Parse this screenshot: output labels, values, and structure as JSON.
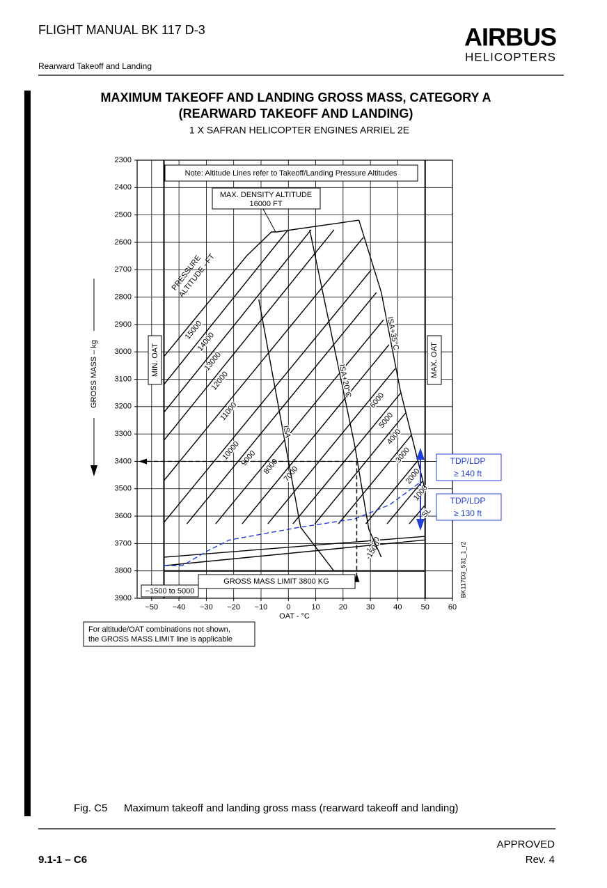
{
  "header": {
    "manual": "FLIGHT MANUAL  BK 117 D-3",
    "section": "Rearward Takeoff and Landing",
    "logo_top": "AIRBUS",
    "logo_bottom": "HELICOPTERS"
  },
  "chart_data": {
    "type": "line",
    "title": [
      "MAXIMUM TAKEOFF AND LANDING GROSS MASS, CATEGORY A",
      "(REARWARD TAKEOFF AND LANDING)"
    ],
    "subtitle": "1 X SAFRAN HELICOPTER ENGINES ARRIEL 2E",
    "x_label": "OAT - °C",
    "y_label": "GROSS MASS – kg",
    "xlim": [
      -55.3,
      60
    ],
    "xticks": [
      {
        "value": -50,
        "label": "−50"
      },
      {
        "value": -40,
        "label": "−40"
      },
      {
        "value": -30,
        "label": "−30"
      },
      {
        "value": -20,
        "label": "−20"
      },
      {
        "value": -10,
        "label": "−10"
      },
      0,
      10,
      20,
      30,
      40,
      50,
      60
    ],
    "ylim": [
      2300,
      3900
    ],
    "y_inverted": true,
    "yticks": [
      2300,
      2400,
      2500,
      2600,
      2700,
      2800,
      2900,
      3000,
      3100,
      3200,
      3300,
      3400,
      3500,
      3600,
      3700,
      3800,
      3900
    ],
    "grid": true,
    "color": "#000000",
    "series": [
      {
        "name": "15000",
        "x": [
          -45.5,
          -15.2
        ],
        "values": [
          3017,
          2649
        ]
      },
      {
        "name": "14000",
        "x": [
          -45.5,
          -0.1
        ],
        "values": [
          3119,
          2554
        ]
      },
      {
        "name": "13000",
        "x": [
          -45.5,
          8.3
        ],
        "values": [
          3221,
          2554
        ]
      },
      {
        "name": "12000",
        "x": [
          -45.5,
          16.7
        ],
        "values": [
          3323,
          2554
        ]
      },
      {
        "name": "11000",
        "x": [
          -45.5,
          27.4
        ],
        "values": [
          3470,
          2582
        ]
      },
      {
        "name": "10000",
        "x": [
          -45.5,
          30.2
        ],
        "values": [
          3623,
          2702
        ]
      },
      {
        "name": "9000",
        "x": [
          -37.1,
          32.2
        ],
        "values": [
          3628,
          2783
        ]
      },
      {
        "name": "8000",
        "x": [
          -26.6,
          34.8
        ],
        "values": [
          3628,
          2883
        ]
      },
      {
        "name": "7000",
        "x": [
          -16.9,
          36.8
        ],
        "values": [
          3628,
          2974
        ]
      },
      {
        "name": "6000",
        "x": [
          -7.5,
          39.1
        ],
        "values": [
          3628,
          3061
        ]
      },
      {
        "name": "5000",
        "x": [
          1.7,
          41.1
        ],
        "values": [
          3628,
          3150
        ]
      },
      {
        "name": "4000",
        "x": [
          9.7,
          42.9
        ],
        "values": [
          3628,
          3223
        ]
      },
      {
        "name": "3000",
        "x": [
          18.3,
          44.9
        ],
        "values": [
          3628,
          3305
        ]
      },
      {
        "name": "2000",
        "x": [
          28.3,
          47.2
        ],
        "values": [
          3628,
          3399
        ]
      },
      {
        "name": "1000",
        "x": [
          36.1,
          49.0
        ],
        "values": [
          3628,
          3473
        ]
      },
      {
        "name": "SL",
        "x": [
          44.2,
          49.8
        ],
        "values": [
          3628,
          3562
        ]
      },
      {
        "name": "-1000",
        "x": [
          -45.5,
          49.8
        ],
        "values": [
          3750,
          3674
        ]
      },
      {
        "name": "-1500",
        "x": [
          -45.5,
          49.8
        ],
        "values": [
          3781,
          3687
        ]
      }
    ],
    "temperature_lines": [
      {
        "name": "ISA",
        "x": [
          -10.8,
          4.5,
          16.7
        ],
        "values": [
          2809,
          3641,
          3801
        ]
      },
      {
        "name": "ISA+20°C",
        "x": [
          7.8,
          24.3,
          29.4,
          34.0
        ],
        "values": [
          2554,
          3343,
          3648,
          3750
        ]
      },
      {
        "name": "ISA+35°C",
        "x": [
          25.8,
          34.0,
          40.9,
          49.8
        ],
        "values": [
          2519,
          2783,
          3140,
          3496
        ]
      }
    ],
    "envelope_top": {
      "x": [
        -15.2,
        -6.2,
        -4.2,
        25.8
      ],
      "values": [
        2649,
        2562,
        2562,
        2519
      ]
    },
    "tdp_line": {
      "color": "#1f3fd6",
      "x": [
        -45.5,
        -38.8,
        -29.2,
        -21.5,
        3.9,
        24.3,
        37.0,
        48.0
      ],
      "values": [
        3781,
        3781,
        3725,
        3687,
        3641,
        3610,
        3559,
        3478
      ]
    },
    "min_oat": {
      "label": "MIN. OAT",
      "value": -45.5
    },
    "max_oat": {
      "label": "MAX. OAT",
      "value": 50
    },
    "mass_limit": {
      "label": "GROSS MASS LIMIT 3800 KG",
      "value": 3800
    },
    "example": {
      "x": 25,
      "y": 3400
    },
    "note": "Note: Altitude Lines refer to Takeoff/Landing Pressure Altitudes",
    "density_altitude": [
      "MAX. DENSITY ALTITUDE",
      "16000 FT"
    ],
    "pressure_altitude_label": [
      "PRESSURE",
      "ALTITUDE - FT"
    ],
    "range_label": "−1500 to 5000",
    "tdp_boxes": [
      {
        "title": "TDP/LDP",
        "height": "≥    140 ft"
      },
      {
        "title": "TDP/LDP",
        "height": "≥ 130 ft"
      }
    ],
    "footnote": [
      "For altitude/OAT combinations not shown,",
      "the GROSS MASS LIMIT line is applicable"
    ],
    "figure_id": "BK117D3_531_1_r2"
  },
  "caption": {
    "number": "Fig. C5",
    "text": "Maximum takeoff and landing gross mass (rearward takeoff and landing)"
  },
  "footer": {
    "status": "APPROVED",
    "page": "9.1-1 – C6",
    "revision": "Rev.  4"
  }
}
